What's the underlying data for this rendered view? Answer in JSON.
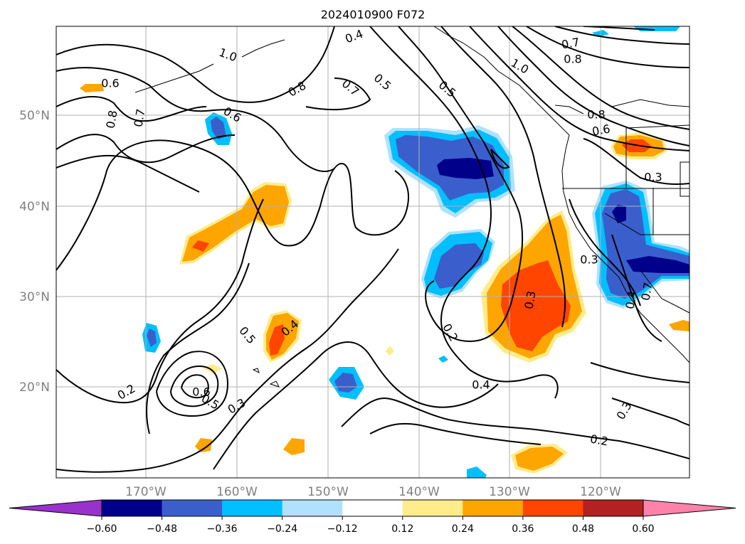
{
  "title": "2024010900 F072",
  "lon_labels": [
    "170°W",
    "160°W",
    "150°W",
    "140°W",
    "130°W",
    "120°W"
  ],
  "lat_labels": [
    "50°N",
    "40°N",
    "30°N",
    "20°N"
  ],
  "colorbar": {
    "labels": [
      "−0.60",
      "−0.48",
      "−0.36",
      "−0.24",
      "−0.12",
      "0.12",
      "0.24",
      "0.36",
      "0.48",
      "0.60"
    ],
    "colors": [
      "#9932cc",
      "#00008b",
      "#3a5fcd",
      "#00bfff",
      "#b0e2ff",
      "#ffffff",
      "#ffec8b",
      "#ffa500",
      "#ff4500",
      "#b22222",
      "#ff82ab"
    ]
  },
  "contour_labels": [
    {
      "text": "0.4"
    },
    {
      "text": "1.0"
    },
    {
      "text": "0.7"
    },
    {
      "text": "0.8"
    },
    {
      "text": "0.6"
    },
    {
      "text": "0.8"
    },
    {
      "text": "0.7"
    },
    {
      "text": "0.5"
    },
    {
      "text": "0.7"
    },
    {
      "text": "0.5"
    },
    {
      "text": "0.6"
    },
    {
      "text": "0.8"
    },
    {
      "text": "1.0"
    },
    {
      "text": "0.8"
    },
    {
      "text": "0.6"
    },
    {
      "text": "0.3"
    },
    {
      "text": "0.3"
    },
    {
      "text": "0.3"
    },
    {
      "text": "0.2"
    },
    {
      "text": "0.4"
    },
    {
      "text": "0.7"
    },
    {
      "text": "0.4"
    },
    {
      "text": "0.5"
    },
    {
      "text": "0.4"
    },
    {
      "text": "0.6"
    },
    {
      "text": "0.5"
    },
    {
      "text": "0.3"
    },
    {
      "text": "0.2"
    },
    {
      "text": "0.2"
    },
    {
      "text": "0.3"
    }
  ],
  "shading_colors": {
    "orange": "#ffa500",
    "red": "#ff4500",
    "yellow": "#ffec8b",
    "navy": "#00008b",
    "blue": "#3a5fcd",
    "cyan": "#00bfff",
    "lightblue": "#b0e2ff"
  }
}
